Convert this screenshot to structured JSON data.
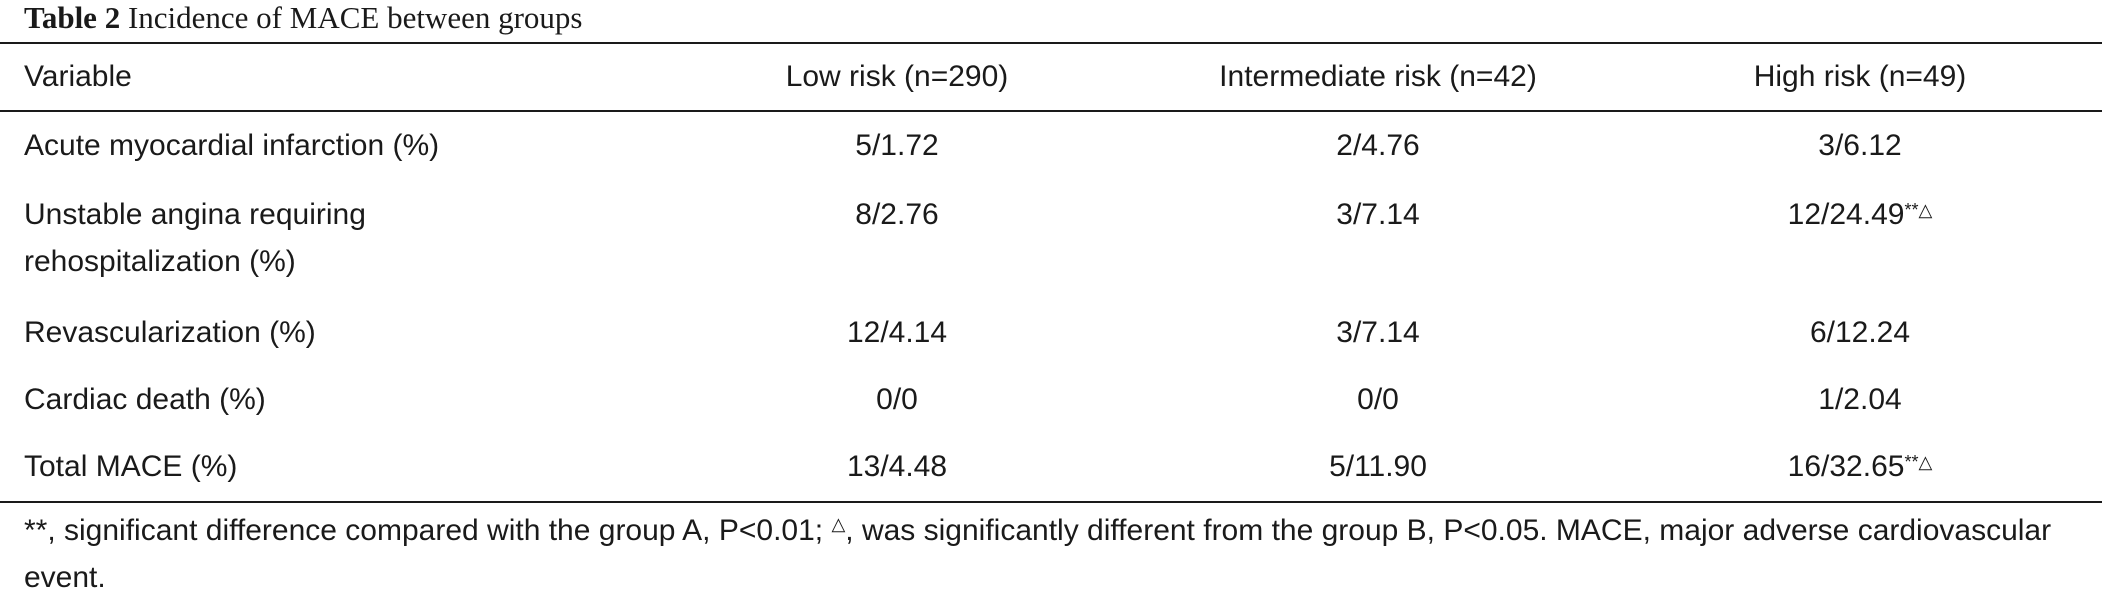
{
  "caption": {
    "label": "Table 2",
    "title": "Incidence of MACE between groups"
  },
  "columns": [
    "Variable",
    "Low risk (n=290)",
    "Intermediate risk (n=42)",
    "High risk (n=49)"
  ],
  "rows": [
    {
      "variable_line1": "Acute myocardial infarction (%)",
      "variable_line2": "",
      "low": "5/1.72",
      "intermediate": "2/4.76",
      "high": "3/6.12",
      "high_mark": ""
    },
    {
      "variable_line1": "Unstable angina requiring",
      "variable_line2": "rehospitalization (%)",
      "low": "8/2.76",
      "intermediate": "3/7.14",
      "high": "12/24.49",
      "high_mark": "**△"
    },
    {
      "variable_line1": "Revascularization (%)",
      "variable_line2": "",
      "low": "12/4.14",
      "intermediate": "3/7.14",
      "high": "6/12.24",
      "high_mark": ""
    },
    {
      "variable_line1": "Cardiac death (%)",
      "variable_line2": "",
      "low": "0/0",
      "intermediate": "0/0",
      "high": "1/2.04",
      "high_mark": ""
    },
    {
      "variable_line1": "Total MACE (%)",
      "variable_line2": "",
      "low": "13/4.48",
      "intermediate": "5/11.90",
      "high": "16/32.65",
      "high_mark": "**△"
    }
  ],
  "footnote": {
    "part1": "**, significant difference compared with the group A, P<0.01; ",
    "symbol": "△",
    "part2": ", was significantly different from the group B, P<0.05. MACE, major adverse cardiovascular event."
  }
}
